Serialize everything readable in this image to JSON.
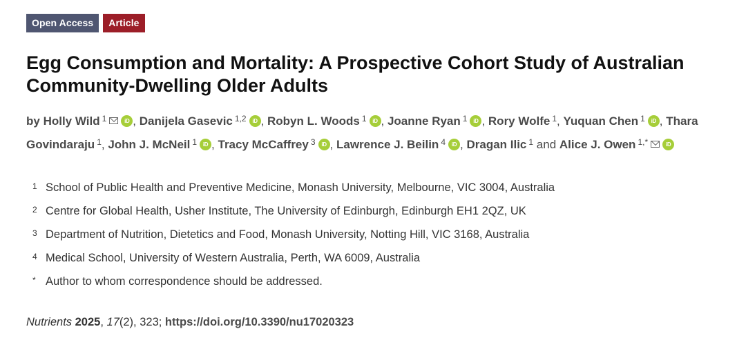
{
  "badges": {
    "open_access": "Open Access",
    "article": "Article"
  },
  "title": "Egg Consumption and Mortality: A Prospective Cohort Study of Australian Community-Dwelling Older Adults",
  "authors_prefix": "by",
  "authors": [
    {
      "name": "Holly Wild",
      "aff": "1",
      "mail": true,
      "orcid": true,
      "sep": ", "
    },
    {
      "name": "Danijela Gasevic",
      "aff": "1,2",
      "mail": false,
      "orcid": true,
      "sep": ", "
    },
    {
      "name": "Robyn L. Woods",
      "aff": "1",
      "mail": false,
      "orcid": true,
      "sep": ", "
    },
    {
      "name": "Joanne Ryan",
      "aff": "1",
      "mail": false,
      "orcid": true,
      "sep": ", "
    },
    {
      "name": "Rory Wolfe",
      "aff": "1",
      "mail": false,
      "orcid": false,
      "sep": ", "
    },
    {
      "name": "Yuquan Chen",
      "aff": "1",
      "mail": false,
      "orcid": true,
      "sep": ", "
    },
    {
      "name": "Thara Govindaraju",
      "aff": "1",
      "mail": false,
      "orcid": false,
      "sep": ", "
    },
    {
      "name": "John J. McNeil",
      "aff": "1",
      "mail": false,
      "orcid": true,
      "sep": ", "
    },
    {
      "name": "Tracy McCaffrey",
      "aff": "3",
      "mail": false,
      "orcid": true,
      "sep": ", "
    },
    {
      "name": "Lawrence J. Beilin",
      "aff": "4",
      "mail": false,
      "orcid": true,
      "sep": ", "
    },
    {
      "name": "Dragan Ilic",
      "aff": "1",
      "mail": false,
      "orcid": false,
      "sep": " and "
    },
    {
      "name": "Alice J. Owen",
      "aff": "1,*",
      "mail": true,
      "orcid": true,
      "sep": ""
    }
  ],
  "icons": {
    "mail": "envelope-icon",
    "orcid": "orcid-icon",
    "orcid_text": "iD",
    "orcid_color": "#a6ce39"
  },
  "affiliations": [
    {
      "num": "1",
      "text": "School of Public Health and Preventive Medicine, Monash University, Melbourne, VIC 3004, Australia"
    },
    {
      "num": "2",
      "text": "Centre for Global Health, Usher Institute, The University of Edinburgh, Edinburgh EH1 2QZ, UK"
    },
    {
      "num": "3",
      "text": "Department of Nutrition, Dietetics and Food, Monash University, Notting Hill, VIC 3168, Australia"
    },
    {
      "num": "4",
      "text": "Medical School, University of Western Australia, Perth, WA 6009, Australia"
    },
    {
      "num": "*",
      "text": "Author to whom correspondence should be addressed."
    }
  ],
  "citation": {
    "journal": "Nutrients",
    "year": "2025",
    "volume": "17",
    "issue": "(2)",
    "article_no": ", 323; ",
    "doi": "https://doi.org/10.3390/nu17020323"
  },
  "colors": {
    "open_access_badge": "#4f5671",
    "article_badge": "#9c1e28"
  }
}
